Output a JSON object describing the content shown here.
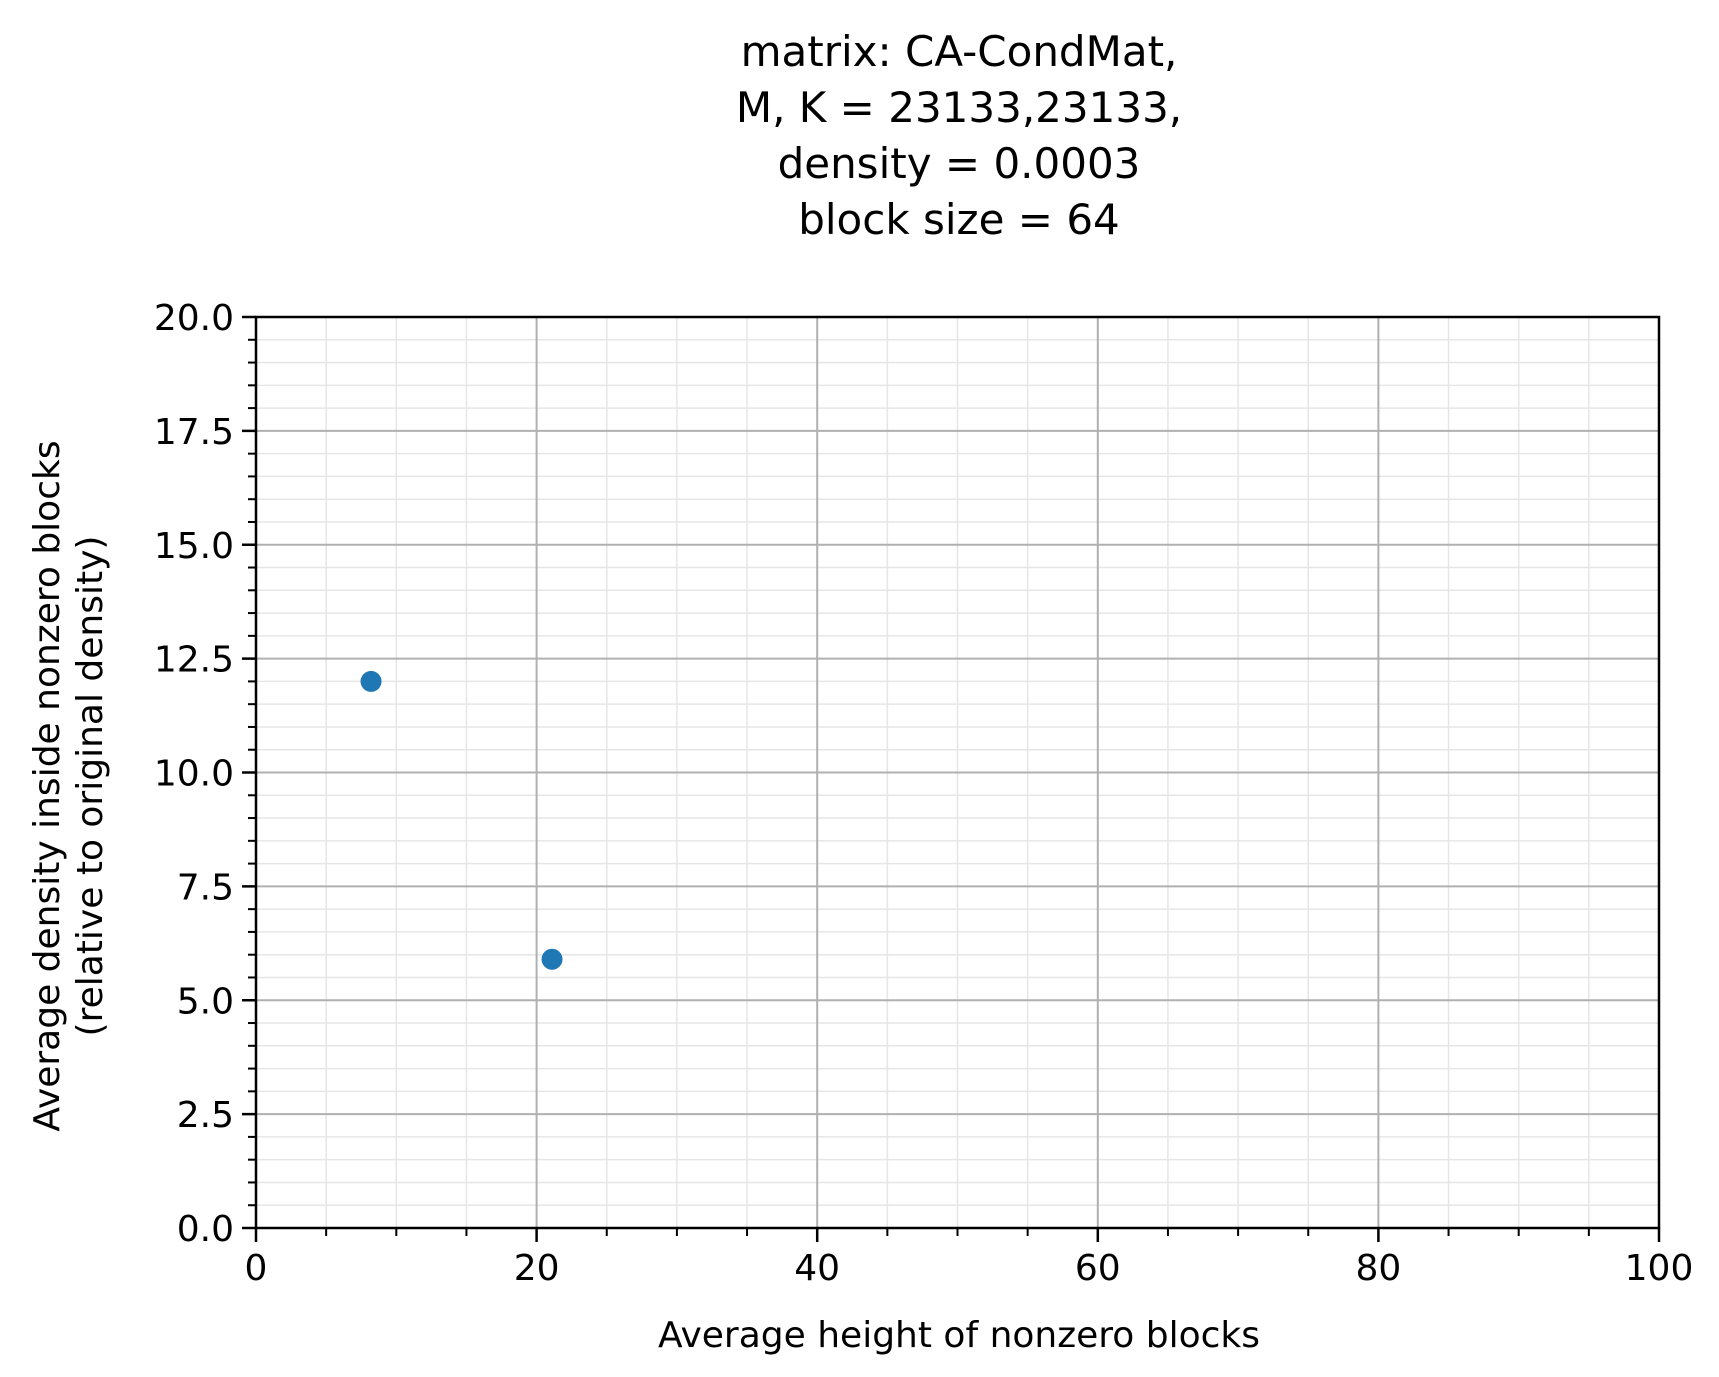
{
  "chart_data": {
    "type": "scatter",
    "title_lines": [
      "matrix: CA-CondMat,",
      "M, K = 23133,23133,",
      "density = 0.0003",
      "block size = 64"
    ],
    "xlabel": "Average height of nonzero blocks",
    "ylabel_lines": [
      "Average density inside nonzero blocks",
      "(relative to original density)"
    ],
    "xlim": [
      0,
      100
    ],
    "ylim": [
      0,
      20
    ],
    "x_ticks": [
      0,
      20,
      40,
      60,
      80,
      100
    ],
    "x_tick_labels": [
      "0",
      "20",
      "40",
      "60",
      "80",
      "100"
    ],
    "y_ticks": [
      0,
      2.5,
      5,
      7.5,
      10,
      12.5,
      15,
      17.5,
      20
    ],
    "y_tick_labels": [
      "0.0",
      "2.5",
      "5.0",
      "7.5",
      "10.0",
      "12.5",
      "15.0",
      "17.5",
      "20.0"
    ],
    "x_minor_step": 5,
    "y_minor_step": 0.5,
    "grid": "major and minor",
    "legend": "none",
    "series": [
      {
        "color": "#1f77b4",
        "points": [
          {
            "x": 8.2,
            "y": 12.0
          },
          {
            "x": 21.1,
            "y": 5.9
          }
        ]
      }
    ]
  },
  "colors": {
    "marker": "#1f77b4",
    "major_grid": "#b0b0b0",
    "minor_grid": "#e6e6e6",
    "axis": "#000000"
  }
}
